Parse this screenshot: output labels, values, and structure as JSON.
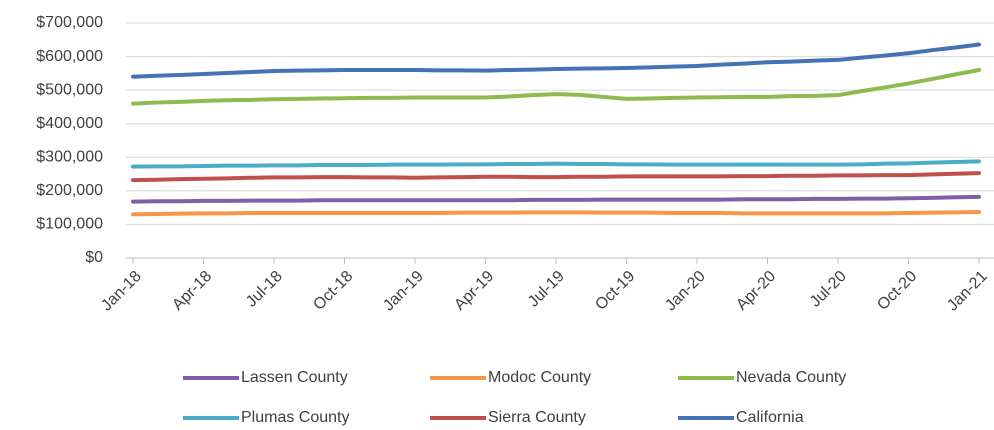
{
  "chart_data": {
    "type": "line",
    "categories": [
      "Jan-18",
      null,
      null,
      "Apr-18",
      null,
      null,
      "Jul-18",
      null,
      null,
      "Oct-18",
      null,
      null,
      "Jan-19",
      null,
      null,
      "Apr-19",
      null,
      null,
      "Jul-19",
      null,
      null,
      "Oct-19",
      null,
      null,
      "Jan-20",
      null,
      null,
      "Apr-20",
      null,
      null,
      "Jul-20",
      null,
      null,
      "Oct-20",
      null,
      null,
      "Jan-21"
    ],
    "series": [
      {
        "name": "Lassen County",
        "color": "#7f5fa8",
        "values": [
          168000,
          169000,
          169000,
          170000,
          170000,
          171000,
          171000,
          171000,
          172000,
          172000,
          172000,
          172000,
          172000,
          172000,
          172000,
          172000,
          172000,
          173000,
          173000,
          173000,
          174000,
          174000,
          174000,
          174000,
          174000,
          174000,
          175000,
          175000,
          175000,
          176000,
          176000,
          177000,
          177000,
          178000,
          179000,
          181000,
          182000
        ]
      },
      {
        "name": "Modoc County",
        "color": "#f79646",
        "values": [
          130000,
          131000,
          132000,
          133000,
          133000,
          134000,
          134000,
          134000,
          134000,
          134000,
          134000,
          134000,
          134000,
          134000,
          135000,
          135000,
          135000,
          136000,
          136000,
          136000,
          135000,
          135000,
          135000,
          134000,
          134000,
          134000,
          133000,
          133000,
          133000,
          133000,
          133000,
          133000,
          133000,
          134000,
          135000,
          136000,
          137000
        ]
      },
      {
        "name": "Nevada County",
        "color": "#8dbb4f",
        "values": [
          460000,
          463000,
          465000,
          468000,
          470000,
          471000,
          473000,
          474000,
          475000,
          476000,
          477000,
          477000,
          478000,
          478000,
          478000,
          478000,
          481000,
          485000,
          488000,
          486000,
          480000,
          474000,
          475000,
          477000,
          478000,
          479000,
          480000,
          480000,
          482000,
          483000,
          485000,
          497000,
          508000,
          520000,
          533000,
          547000,
          560000
        ]
      },
      {
        "name": "Plumas County",
        "color": "#4bacc6",
        "values": [
          272000,
          273000,
          273000,
          274000,
          275000,
          275000,
          276000,
          276000,
          277000,
          277000,
          277000,
          278000,
          278000,
          278000,
          279000,
          279000,
          280000,
          280000,
          281000,
          280000,
          280000,
          279000,
          279000,
          278000,
          278000,
          278000,
          278000,
          278000,
          278000,
          278000,
          278000,
          279000,
          281000,
          282000,
          284000,
          286000,
          288000
        ]
      },
      {
        "name": "Sierra County",
        "color": "#c0504d",
        "values": [
          232000,
          233000,
          235000,
          236000,
          237000,
          239000,
          240000,
          240000,
          241000,
          241000,
          240000,
          240000,
          239000,
          240000,
          241000,
          242000,
          242000,
          241000,
          241000,
          242000,
          242000,
          243000,
          243000,
          243000,
          243000,
          243000,
          244000,
          244000,
          245000,
          245000,
          246000,
          246000,
          247000,
          247000,
          249000,
          251000,
          253000
        ]
      },
      {
        "name": "California",
        "color": "#4472b4",
        "values": [
          540000,
          543000,
          545000,
          548000,
          551000,
          554000,
          557000,
          558000,
          559000,
          560000,
          560000,
          560000,
          560000,
          559000,
          559000,
          558000,
          560000,
          561000,
          563000,
          564000,
          565000,
          566000,
          568000,
          570000,
          572000,
          576000,
          579000,
          583000,
          585000,
          588000,
          590000,
          597000,
          603000,
          610000,
          619000,
          627000,
          636000
        ]
      }
    ],
    "ylim": [
      0,
      700000
    ],
    "yticks": [
      {
        "value": 0,
        "label": "$0"
      },
      {
        "value": 100000,
        "label": "$100,000"
      },
      {
        "value": 200000,
        "label": "$200,000"
      },
      {
        "value": 300000,
        "label": "$300,000"
      },
      {
        "value": 400000,
        "label": "$400,000"
      },
      {
        "value": 500000,
        "label": "$500,000"
      },
      {
        "value": 600000,
        "label": "$600,000"
      },
      {
        "value": 700000,
        "label": "$700,000"
      }
    ],
    "grid": true,
    "legend": "bottom"
  }
}
